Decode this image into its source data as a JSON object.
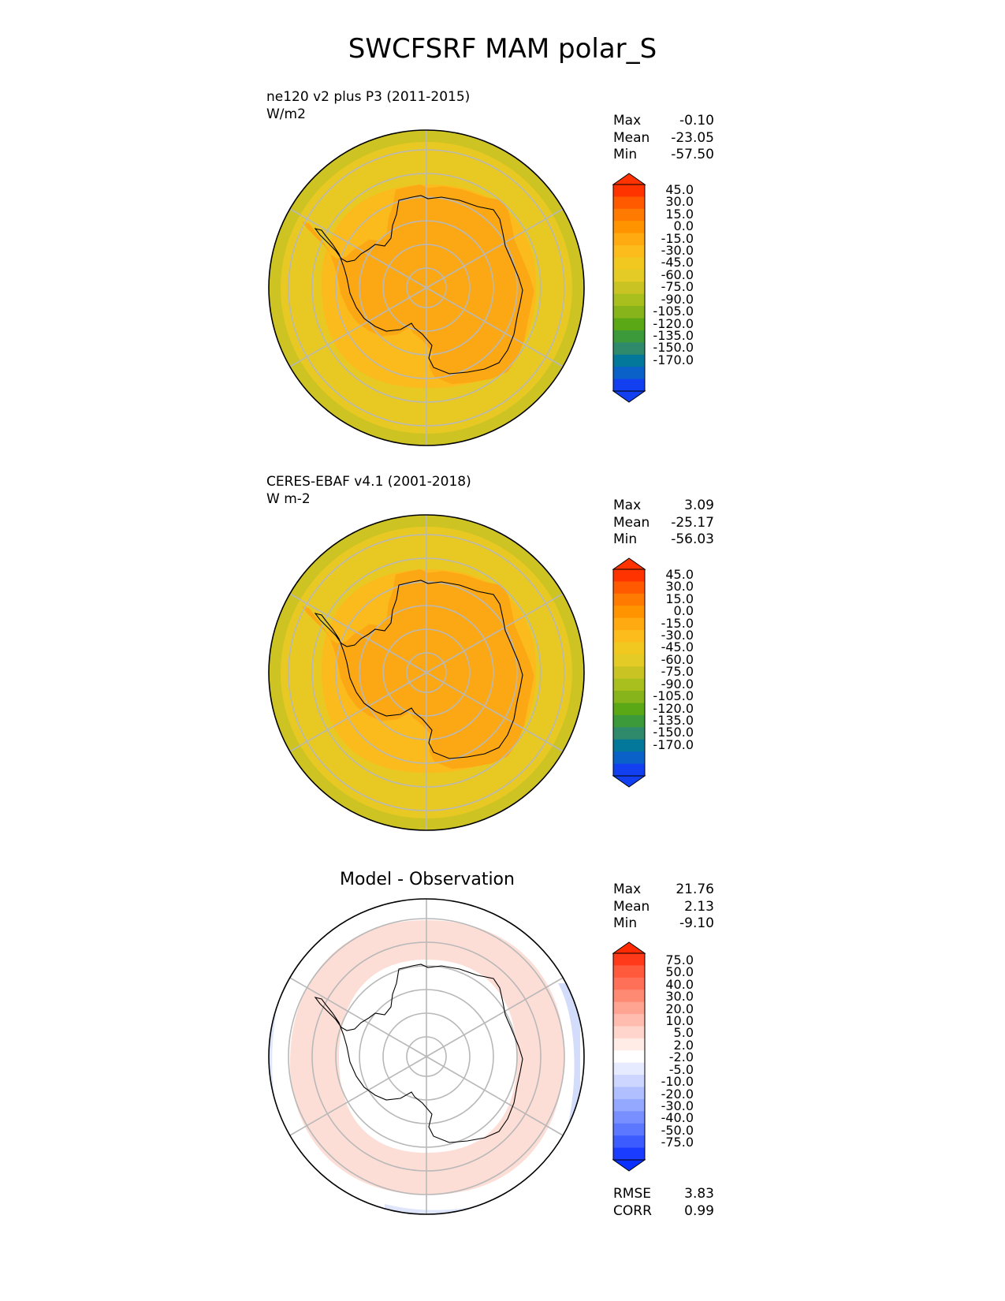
{
  "figure": {
    "title": "SWCFSRF MAM polar_S"
  },
  "panels": [
    {
      "id": "model",
      "title_line1": "ne120 v2 plus P3 (2011-2015)",
      "title_line2": "W/m2",
      "stats": {
        "max_label": "Max",
        "max": "-0.10",
        "mean_label": "Mean",
        "mean": "-23.05",
        "min_label": "Min",
        "min": "-57.50"
      },
      "colorbar": {
        "labels": [
          "45.0",
          "30.0",
          "15.0",
          "0.0",
          "-15.0",
          "-30.0",
          "-45.0",
          "-60.0",
          "-75.0",
          "-90.0",
          "-105.0",
          "-120.0",
          "-135.0",
          "-150.0",
          "-170.0"
        ],
        "colors": [
          "#ff3300",
          "#ff5a00",
          "#ff7a00",
          "#ff9400",
          "#ffaa10",
          "#fbbc1c",
          "#f0c81f",
          "#e4cb26",
          "#c9c323",
          "#a9bf1e",
          "#86b41a",
          "#5aa815",
          "#3c9a3a",
          "#2e8a6b",
          "#03789a",
          "#0a62c8",
          "#1240f0"
        ],
        "top_color": "#ff3300",
        "bottom_color": "#1240f0"
      },
      "map_colors": {
        "outer": "#cdc322",
        "ocean": "#e8c923",
        "shelf": "#fbbb1d",
        "interior": "#fca814"
      }
    },
    {
      "id": "obs",
      "title_line1": "CERES-EBAF v4.1 (2001-2018)",
      "title_line2": "W m-2",
      "stats": {
        "max_label": "Max",
        "max": "3.09",
        "mean_label": "Mean",
        "mean": "-25.17",
        "min_label": "Min",
        "min": "-56.03"
      },
      "colorbar": {
        "labels": [
          "45.0",
          "30.0",
          "15.0",
          "0.0",
          "-15.0",
          "-30.0",
          "-45.0",
          "-60.0",
          "-75.0",
          "-90.0",
          "-105.0",
          "-120.0",
          "-135.0",
          "-150.0",
          "-170.0"
        ],
        "colors": [
          "#ff3300",
          "#ff5a00",
          "#ff7a00",
          "#ff9400",
          "#ffaa10",
          "#fbbc1c",
          "#f0c81f",
          "#e4cb26",
          "#c9c323",
          "#a9bf1e",
          "#86b41a",
          "#5aa815",
          "#3c9a3a",
          "#2e8a6b",
          "#03789a",
          "#0a62c8",
          "#1240f0"
        ],
        "top_color": "#ff3300",
        "bottom_color": "#1240f0"
      },
      "map_colors": {
        "outer": "#cdc322",
        "ocean": "#e8c923",
        "shelf": "#fbbb1d",
        "interior": "#fca814"
      }
    },
    {
      "id": "diff",
      "title_line1": "Model - Observation",
      "stats": {
        "max_label": "Max",
        "max": "21.76",
        "mean_label": "Mean",
        "mean": "2.13",
        "min_label": "Min",
        "min": "-9.10"
      },
      "colorbar": {
        "labels": [
          "75.0",
          "50.0",
          "40.0",
          "30.0",
          "20.0",
          "10.0",
          "5.0",
          "2.0",
          "-2.0",
          "-5.0",
          "-10.0",
          "-20.0",
          "-30.0",
          "-40.0",
          "-50.0",
          "-75.0"
        ],
        "colors": [
          "#ff3a1a",
          "#ff5a3c",
          "#ff7058",
          "#ff8a74",
          "#ffa393",
          "#ffbcaf",
          "#ffd5cc",
          "#ffecE6",
          "#ffffff",
          "#e6ebff",
          "#ccd6ff",
          "#b0bfff",
          "#94a8ff",
          "#7890ff",
          "#5c78ff",
          "#3d5cff",
          "#1a3cff"
        ],
        "top_color": "#ff2a00",
        "bottom_color": "#0a30ff"
      },
      "map_colors": {
        "outer": "#ffffff",
        "ocean": "#ffffff",
        "shelf": "#fddad2",
        "interior": "#ffffff"
      }
    }
  ],
  "summary": {
    "rmse_label": "RMSE",
    "rmse": "3.83",
    "corr_label": "CORR",
    "corr": "0.99"
  }
}
